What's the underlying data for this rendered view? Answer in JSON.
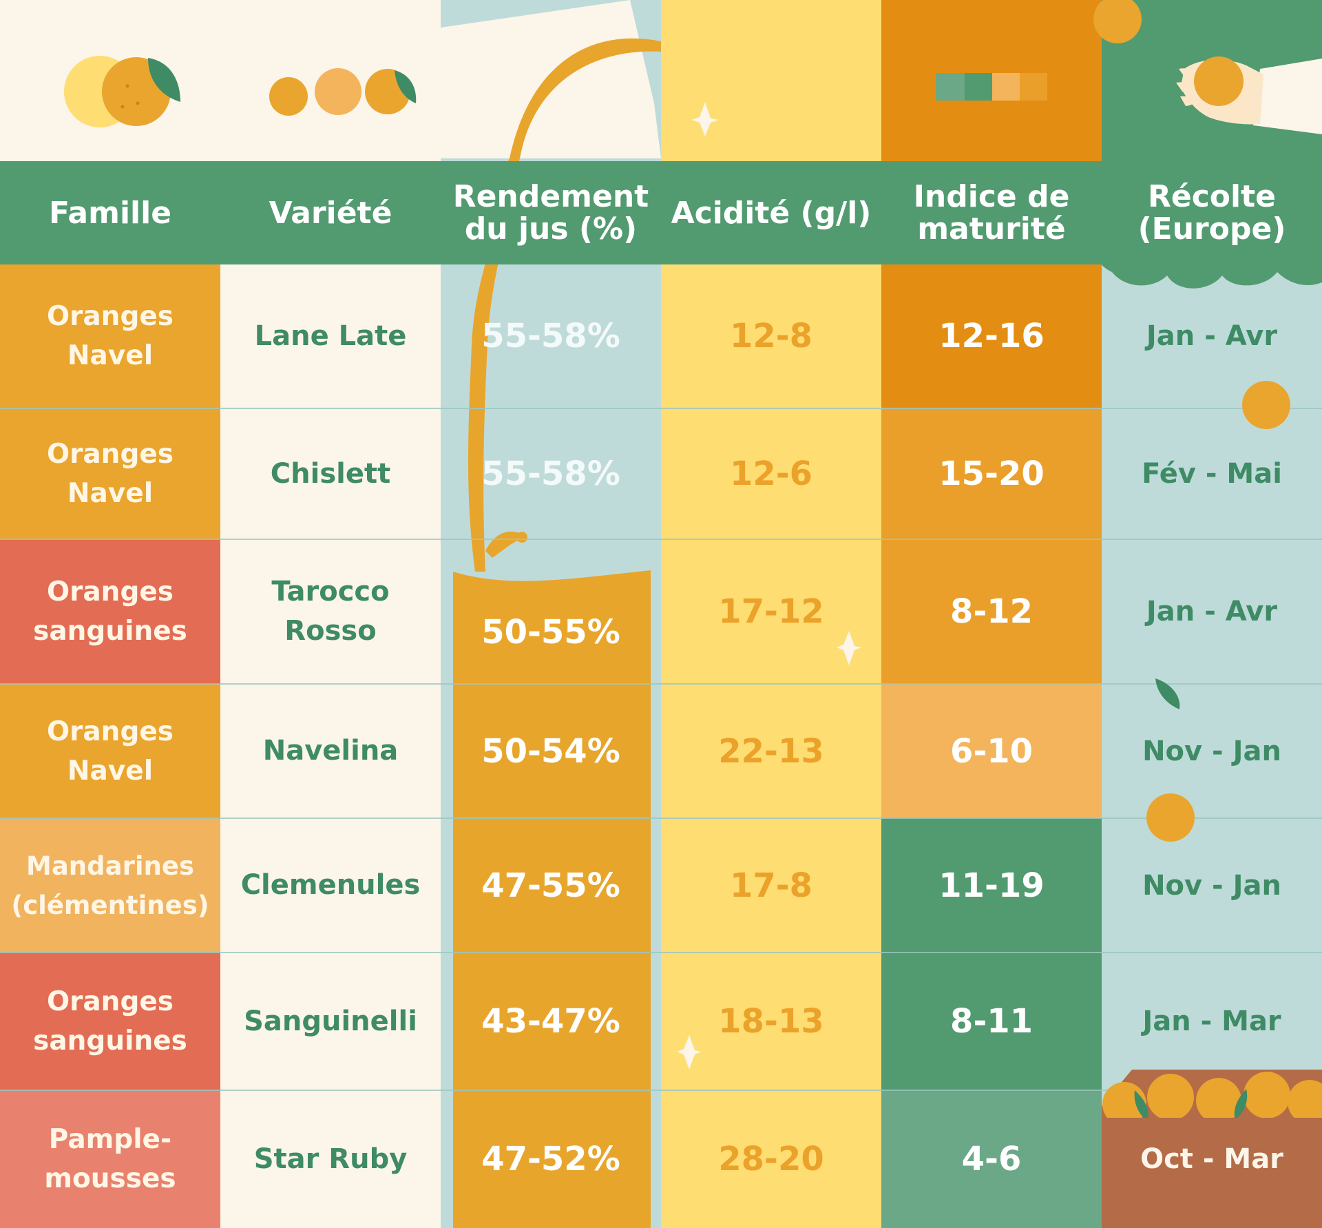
{
  "headers": {
    "family": "Famille",
    "variety": "Variété",
    "juice_yield": "Rendement\ndu jus (%)",
    "acidity": "Acidité (g/l)",
    "maturity": "Indice de\nmaturité",
    "harvest": "Récolte\n(Europe)"
  },
  "rows": [
    {
      "family": "Oranges\nNavel",
      "variety": "Lane Late",
      "juice_yield": "55-58%",
      "acidity": "12-8",
      "maturity": "12-16",
      "harvest": "Jan - Avr"
    },
    {
      "family": "Oranges\nNavel",
      "variety": "Chislett",
      "juice_yield": "55-58%",
      "acidity": "12-6",
      "maturity": "15-20",
      "harvest": "Fév - Mai"
    },
    {
      "family": "Oranges\nsanguines",
      "variety": "Tarocco\nRosso",
      "juice_yield": "50-55%",
      "acidity": "17-12",
      "maturity": "8-12",
      "harvest": "Jan - Avr"
    },
    {
      "family": "Oranges\nNavel",
      "variety": "Navelina",
      "juice_yield": "50-54%",
      "acidity": "22-13",
      "maturity": "6-10",
      "harvest": "Nov - Jan"
    },
    {
      "family": "Mandarines\n(clémentines)",
      "variety": "Clemenules",
      "juice_yield": "47-55%",
      "acidity": "17-8",
      "maturity": "11-19",
      "harvest": "Nov - Jan"
    },
    {
      "family": "Oranges\nsanguines",
      "variety": "Sanguinelli",
      "juice_yield": "43-47%",
      "acidity": "18-13",
      "maturity": "8-11",
      "harvest": "Jan - Mar"
    },
    {
      "family": "Pample-\nmousses",
      "variety": "Star Ruby",
      "juice_yield": "47-52%",
      "acidity": "28-20",
      "maturity": "4-6",
      "harvest": "Oct - Mar"
    }
  ],
  "colors": {
    "header_green": "#529A70",
    "cream": "#FBF5EA",
    "navel_orange": "#E9A52E",
    "blood_orange_red": "#E36C54",
    "mandarin_light": "#F1B35E",
    "grapefruit_pink": "#E8826E",
    "juice_blue": "#BFDBD9",
    "juice_orange": "#E8A52C",
    "acidity_yellow": "#FEDD72",
    "maturity_dark_orange": "#E38E12",
    "maturity_orange": "#EA9F2A",
    "maturity_light": "#F3B45C",
    "maturity_green": "#529A70",
    "maturity_light_green": "#6AA887",
    "harvest_blue": "#BFDBD9",
    "crate_brown": "#B46B48"
  },
  "decorations": [
    "lemon-orange-icon",
    "three-citrus-icon",
    "juice-pour-stream",
    "color-scale-icon",
    "hand-holding-orange-icon",
    "sparkle-icon",
    "leaf-icon",
    "orange-crate-icon"
  ]
}
